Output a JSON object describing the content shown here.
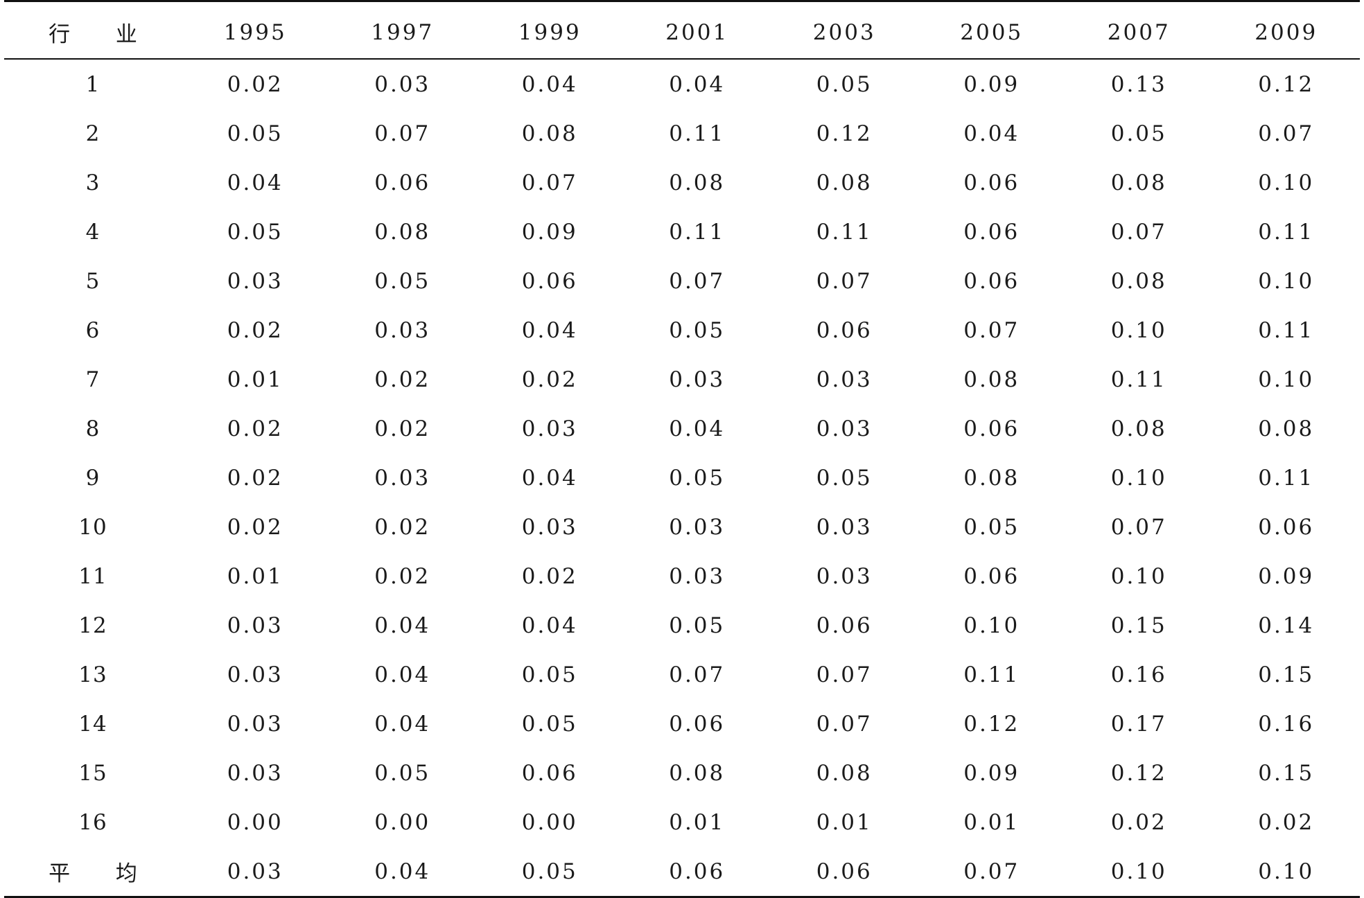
{
  "table": {
    "header": {
      "first": "行 业",
      "years": [
        "1995",
        "1997",
        "1999",
        "2001",
        "2003",
        "2005",
        "2007",
        "2009"
      ]
    },
    "rows": [
      {
        "label": "1",
        "values": [
          "0.02",
          "0.03",
          "0.04",
          "0.04",
          "0.05",
          "0.09",
          "0.13",
          "0.12"
        ]
      },
      {
        "label": "2",
        "values": [
          "0.05",
          "0.07",
          "0.08",
          "0.11",
          "0.12",
          "0.04",
          "0.05",
          "0.07"
        ]
      },
      {
        "label": "3",
        "values": [
          "0.04",
          "0.06",
          "0.07",
          "0.08",
          "0.08",
          "0.06",
          "0.08",
          "0.10"
        ]
      },
      {
        "label": "4",
        "values": [
          "0.05",
          "0.08",
          "0.09",
          "0.11",
          "0.11",
          "0.06",
          "0.07",
          "0.11"
        ]
      },
      {
        "label": "5",
        "values": [
          "0.03",
          "0.05",
          "0.06",
          "0.07",
          "0.07",
          "0.06",
          "0.08",
          "0.10"
        ]
      },
      {
        "label": "6",
        "values": [
          "0.02",
          "0.03",
          "0.04",
          "0.05",
          "0.06",
          "0.07",
          "0.10",
          "0.11"
        ]
      },
      {
        "label": "7",
        "values": [
          "0.01",
          "0.02",
          "0.02",
          "0.03",
          "0.03",
          "0.08",
          "0.11",
          "0.10"
        ]
      },
      {
        "label": "8",
        "values": [
          "0.02",
          "0.02",
          "0.03",
          "0.04",
          "0.03",
          "0.06",
          "0.08",
          "0.08"
        ]
      },
      {
        "label": "9",
        "values": [
          "0.02",
          "0.03",
          "0.04",
          "0.05",
          "0.05",
          "0.08",
          "0.10",
          "0.11"
        ]
      },
      {
        "label": "10",
        "values": [
          "0.02",
          "0.02",
          "0.03",
          "0.03",
          "0.03",
          "0.05",
          "0.07",
          "0.06"
        ]
      },
      {
        "label": "11",
        "values": [
          "0.01",
          "0.02",
          "0.02",
          "0.03",
          "0.03",
          "0.06",
          "0.10",
          "0.09"
        ]
      },
      {
        "label": "12",
        "values": [
          "0.03",
          "0.04",
          "0.04",
          "0.05",
          "0.06",
          "0.10",
          "0.15",
          "0.14"
        ]
      },
      {
        "label": "13",
        "values": [
          "0.03",
          "0.04",
          "0.05",
          "0.07",
          "0.07",
          "0.11",
          "0.16",
          "0.15"
        ]
      },
      {
        "label": "14",
        "values": [
          "0.03",
          "0.04",
          "0.05",
          "0.06",
          "0.07",
          "0.12",
          "0.17",
          "0.16"
        ]
      },
      {
        "label": "15",
        "values": [
          "0.03",
          "0.05",
          "0.06",
          "0.08",
          "0.08",
          "0.09",
          "0.12",
          "0.15"
        ]
      },
      {
        "label": "16",
        "values": [
          "0.00",
          "0.00",
          "0.00",
          "0.01",
          "0.01",
          "0.01",
          "0.02",
          "0.02"
        ]
      },
      {
        "label": "平 均",
        "values": [
          "0.03",
          "0.04",
          "0.05",
          "0.06",
          "0.06",
          "0.07",
          "0.10",
          "0.10"
        ]
      }
    ]
  }
}
